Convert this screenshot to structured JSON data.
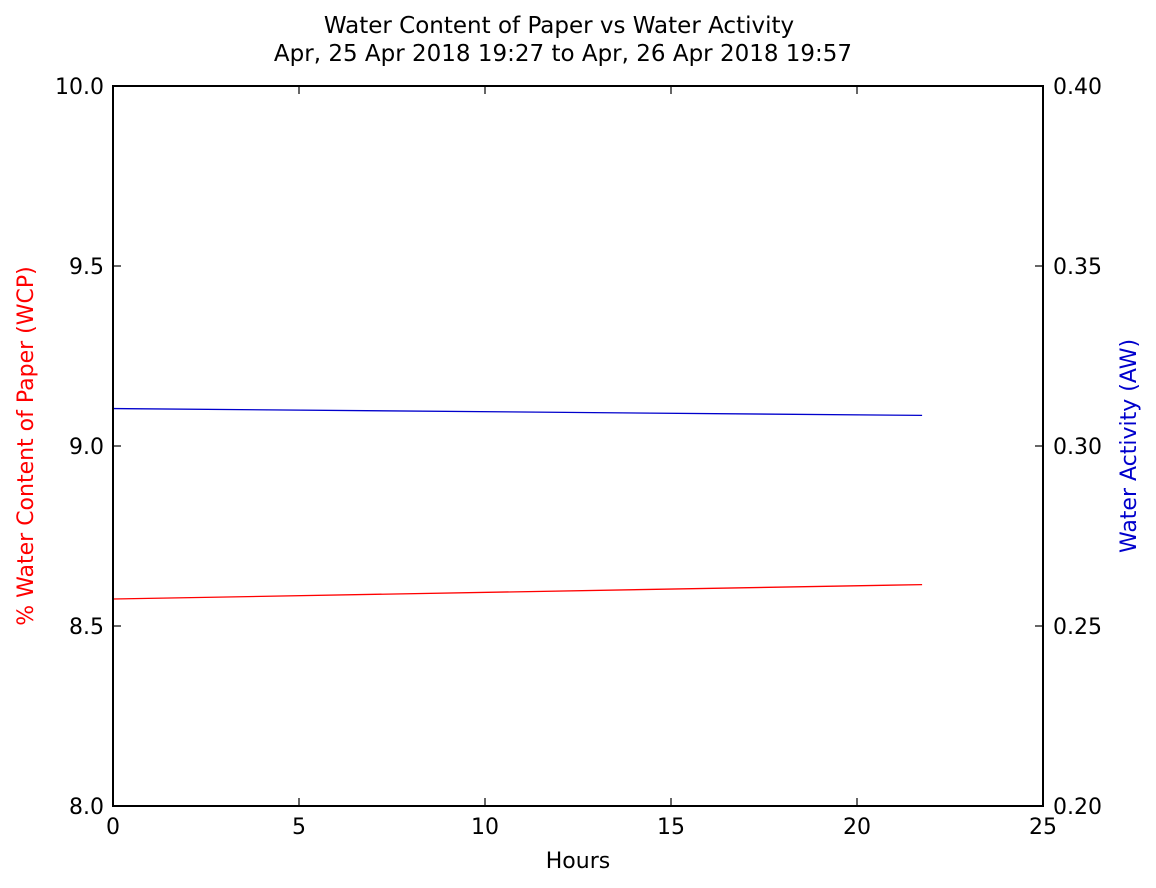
{
  "chart_data": {
    "type": "line",
    "title": "Water Content of Paper vs Water Activity",
    "subtitle": "Apr, 25 Apr 2018 19:27 to Apr, 26 Apr 2018 19:57",
    "xlabel": "Hours",
    "ylabel_left": "% Water Content of Paper (WCP)",
    "ylabel_right": "Water Activity (AW)",
    "xlim": [
      0,
      25
    ],
    "ylim_left": [
      8.0,
      10.0
    ],
    "ylim_right": [
      0.2,
      0.4
    ],
    "x_ticks": [
      "0",
      "5",
      "10",
      "15",
      "20",
      "25"
    ],
    "y_left_ticks": [
      "8.0",
      "8.5",
      "9.0",
      "9.5",
      "10.0"
    ],
    "y_right_ticks": [
      "0.20",
      "0.25",
      "0.30",
      "0.35",
      "0.40"
    ],
    "grid": false,
    "colors": {
      "left_axis": "#ff0000",
      "right_axis": "#0000cc"
    },
    "series": [
      {
        "axis": "left",
        "color": "#ff0000",
        "x": [
          0,
          21.75
        ],
        "values": [
          8.575,
          8.615
        ]
      },
      {
        "axis": "right",
        "color": "#0000cc",
        "x": [
          0,
          21.75
        ],
        "values": [
          0.3104,
          0.3085
        ]
      }
    ]
  }
}
